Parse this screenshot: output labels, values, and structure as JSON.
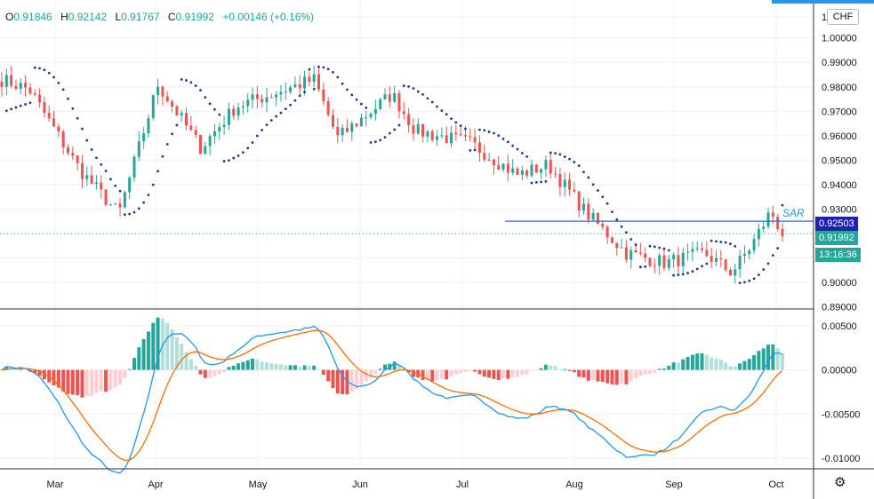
{
  "legend": {
    "o_label": "O",
    "o": "0.91846",
    "h_label": "H",
    "h": "0.92142",
    "l_label": "L",
    "l": "0.91767",
    "c_label": "C",
    "c": "0.91992",
    "change": "+0.00146 (+0.16%)"
  },
  "currency_button": "CHF",
  "sar_label": "SAR",
  "badges": {
    "line_price": "0.92503",
    "last_price": "0.91992",
    "countdown": "13:16:36"
  },
  "colors": {
    "up": "#26a69a",
    "down": "#ef5350",
    "sar": "#1e3a8a",
    "hline": "#2962ff",
    "macd": "#2196f3",
    "signal": "#ff6d00",
    "hist_up_strong": "#26a69a",
    "hist_up_weak": "#b2dfdb",
    "hist_down_strong": "#ef5350",
    "hist_down_weak": "#ffcdd2"
  },
  "icons": {
    "settings": "gear-icon"
  },
  "chart_data": [
    {
      "type": "candlestick",
      "title": "",
      "x_ticks": [
        "Mar",
        "Apr",
        "May",
        "Jun",
        "Jul",
        "Aug",
        "Sep",
        "Oct"
      ],
      "y_ticks": [
        "0.89000",
        "0.90000",
        "0.91000",
        "0.92000",
        "0.93000",
        "0.94000",
        "0.95000",
        "0.96000",
        "0.97000",
        "0.98000",
        "0.99000",
        "1.00000",
        "1."
      ],
      "ylim": [
        0.8895,
        1.0155
      ],
      "horizontal_line": 0.92503,
      "last_price": 0.91992,
      "series": [
        {
          "name": "",
          "kind": "price-waypoints",
          "t": [
            0,
            0.035,
            0.1,
            0.15,
            0.2,
            0.255,
            0.3,
            0.4,
            0.43,
            0.5,
            0.53,
            0.6,
            0.66,
            0.7,
            0.75,
            0.8,
            0.85,
            0.9,
            0.935,
            0.96,
            0.985,
            1
          ],
          "values": [
            0.983,
            0.979,
            0.946,
            0.928,
            0.981,
            0.955,
            0.972,
            0.983,
            0.959,
            0.977,
            0.962,
            0.957,
            0.944,
            0.948,
            0.928,
            0.912,
            0.908,
            0.912,
            0.904,
            0.915,
            0.929,
            0.92
          ]
        },
        {
          "name": "SAR",
          "kind": "parabolic-sar"
        }
      ]
    },
    {
      "type": "macd",
      "y_ticks": [
        "0.00500",
        "0.00000",
        "-0.00500",
        "-0.01000"
      ],
      "ylim": [
        -0.0112,
        0.0067
      ],
      "series": [
        {
          "name": "",
          "kind": "macd-line"
        },
        {
          "name": "",
          "kind": "signal-line"
        },
        {
          "name": "",
          "kind": "histogram"
        }
      ]
    }
  ]
}
